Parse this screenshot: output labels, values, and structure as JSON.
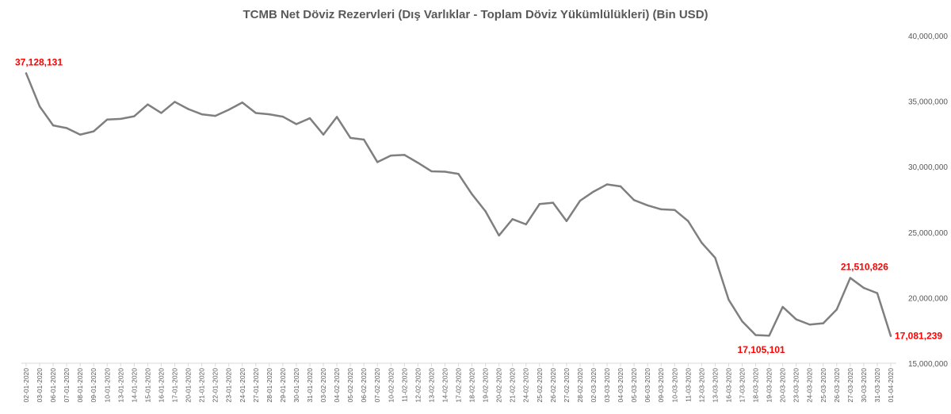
{
  "chart_data": {
    "type": "line",
    "title": "TCMB Net Döviz Rezervleri (Dış Varlıklar - Toplam Döviz Yükümlülükleri) (Bin USD)",
    "xlabel": "",
    "ylabel": "",
    "ylim": [
      15000000,
      40000000
    ],
    "yticks": [
      15000000,
      20000000,
      25000000,
      30000000,
      35000000,
      40000000
    ],
    "ytick_labels": [
      "15,000,000",
      "20,000,000",
      "25,000,000",
      "30,000,000",
      "35,000,000",
      "40,000,000"
    ],
    "y_axis_position": "right",
    "grid": false,
    "line_color": "#7f7f7f",
    "label_color": "#ff0000",
    "x": [
      "02-01-2020",
      "03-01-2020",
      "06-01-2020",
      "07-01-2020",
      "08-01-2020",
      "09-01-2020",
      "10-01-2020",
      "13-01-2020",
      "14-01-2020",
      "15-01-2020",
      "16-01-2020",
      "17-01-2020",
      "20-01-2020",
      "21-01-2020",
      "22-01-2020",
      "23-01-2020",
      "24-01-2020",
      "27-01-2020",
      "28-01-2020",
      "29-01-2020",
      "30-01-2020",
      "31-01-2020",
      "03-02-2020",
      "04-02-2020",
      "05-02-2020",
      "06-02-2020",
      "07-02-2020",
      "10-02-2020",
      "11-02-2020",
      "12-02-2020",
      "13-02-2020",
      "14-02-2020",
      "17-02-2020",
      "18-02-2020",
      "19-02-2020",
      "20-02-2020",
      "21-02-2020",
      "24-02-2020",
      "25-02-2020",
      "26-02-2020",
      "27-02-2020",
      "28-02-2020",
      "02-03-2020",
      "03-03-2020",
      "04-03-2020",
      "05-03-2020",
      "06-03-2020",
      "09-03-2020",
      "10-03-2020",
      "11-03-2020",
      "12-03-2020",
      "13-03-2020",
      "16-03-2020",
      "17-03-2020",
      "18-03-2020",
      "19-03-2020",
      "20-03-2020",
      "23-03-2020",
      "24-03-2020",
      "25-03-2020",
      "26-03-2020",
      "27-03-2020",
      "30-03-2020",
      "31-03-2020",
      "01-04-2020"
    ],
    "series": [
      {
        "values": [
          37128131,
          34600000,
          33150000,
          32950000,
          32450000,
          32700000,
          33600000,
          33650000,
          33850000,
          34750000,
          34100000,
          34950000,
          34400000,
          34000000,
          33880000,
          34350000,
          34900000,
          34100000,
          34000000,
          33820000,
          33250000,
          33700000,
          32450000,
          33800000,
          32200000,
          32070000,
          30350000,
          30850000,
          30900000,
          30300000,
          29650000,
          29620000,
          29450000,
          27900000,
          26600000,
          24750000,
          26000000,
          25600000,
          27150000,
          27250000,
          25850000,
          27400000,
          28100000,
          28650000,
          28500000,
          27450000,
          27050000,
          26750000,
          26700000,
          25850000,
          24200000,
          23050000,
          19850000,
          18200000,
          17150000,
          17105101,
          19300000,
          18350000,
          17950000,
          18050000,
          19100000,
          21510826,
          20750000,
          20350000,
          17081239
        ]
      }
    ],
    "annotations": [
      {
        "index": 0,
        "text": "37,128,131"
      },
      {
        "index": 55,
        "text": "17,105,101"
      },
      {
        "index": 61,
        "text": "21,510,826"
      },
      {
        "index": 64,
        "text": "17,081,239"
      }
    ]
  }
}
